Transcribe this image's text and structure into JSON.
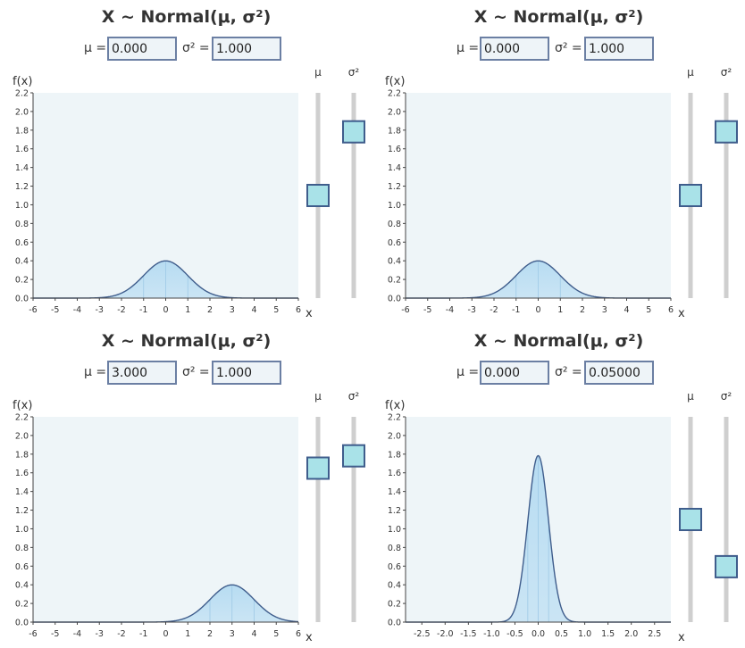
{
  "panels": [
    {
      "title": "X ~ Normal(μ, σ²)",
      "mu_label": "μ =",
      "sigma_label": "σ² =",
      "mu_value": "0.000",
      "sigma_value": "1.000",
      "fx_label": "f(x)",
      "x_label": "x",
      "slider_mu_label": "μ",
      "slider_sigma_label": "σ²",
      "slider_mu_level": 0.5,
      "slider_sigma_level": 0.81
    },
    {
      "title": "X ~ Normal(μ, σ²)",
      "mu_label": "μ =",
      "sigma_label": "σ² =",
      "mu_value": "0.000",
      "sigma_value": "1.000",
      "fx_label": "f(x)",
      "x_label": "x",
      "slider_mu_label": "μ",
      "slider_sigma_label": "σ²",
      "slider_mu_level": 0.5,
      "slider_sigma_level": 0.81
    },
    {
      "title": "X ~ Normal(μ, σ²)",
      "mu_label": "μ =",
      "sigma_label": "σ² =",
      "mu_value": "3.000",
      "sigma_value": "1.000",
      "fx_label": "f(x)",
      "x_label": "x",
      "slider_mu_label": "μ",
      "slider_sigma_label": "σ²",
      "slider_mu_level": 0.75,
      "slider_sigma_level": 0.81
    },
    {
      "title": "X ~ Normal(μ, σ²)",
      "mu_label": "μ =",
      "sigma_label": "σ² =",
      "mu_value": "0.000",
      "sigma_value": "0.05000",
      "fx_label": "f(x)",
      "x_label": "x",
      "slider_mu_label": "μ",
      "slider_sigma_label": "σ²",
      "slider_mu_level": 0.5,
      "slider_sigma_level": 0.27
    }
  ],
  "colors": {
    "plot_bg": "#eef5f8",
    "curve": "#3f5d8c",
    "fill": "#b7dcf2",
    "slider_track": "#cfcfcf",
    "slider_handle": "#a9e2e8",
    "slider_handle_border": "#3f5d8c"
  },
  "chart_data": [
    {
      "type": "area",
      "distribution": "normal",
      "mu": 0.0,
      "sigma2": 1.0,
      "xlim": [
        -6,
        6
      ],
      "ylim": [
        0,
        2.2
      ],
      "x_ticks": [
        "-6",
        "-5",
        "-4",
        "-3",
        "-2",
        "-1",
        "0",
        "1",
        "2",
        "3",
        "4",
        "5",
        "6"
      ],
      "y_ticks": [
        "0.0",
        "0.2",
        "0.4",
        "0.6",
        "0.8",
        "1.0",
        "1.2",
        "1.4",
        "1.6",
        "1.8",
        "2.0",
        "2.2"
      ],
      "xlabel": "x",
      "ylabel": "f(x)"
    },
    {
      "type": "area",
      "distribution": "normal",
      "mu": 0.0,
      "sigma2": 1.0,
      "xlim": [
        -6,
        6
      ],
      "ylim": [
        0,
        2.2
      ],
      "x_ticks": [
        "-6",
        "-5",
        "-4",
        "-3",
        "-2",
        "-1",
        "0",
        "1",
        "2",
        "3",
        "4",
        "5",
        "6"
      ],
      "y_ticks": [
        "0.0",
        "0.2",
        "0.4",
        "0.6",
        "0.8",
        "1.0",
        "1.2",
        "1.4",
        "1.6",
        "1.8",
        "2.0",
        "2.2"
      ],
      "xlabel": "x",
      "ylabel": "f(x)"
    },
    {
      "type": "area",
      "distribution": "normal",
      "mu": 3.0,
      "sigma2": 1.0,
      "xlim": [
        -6,
        6
      ],
      "ylim": [
        0,
        2.2
      ],
      "x_ticks": [
        "-6",
        "-5",
        "-4",
        "-3",
        "-2",
        "-1",
        "0",
        "1",
        "2",
        "3",
        "4",
        "5",
        "6"
      ],
      "y_ticks": [
        "0.0",
        "0.2",
        "0.4",
        "0.6",
        "0.8",
        "1.0",
        "1.2",
        "1.4",
        "1.6",
        "1.8",
        "2.0",
        "2.2"
      ],
      "xlabel": "x",
      "ylabel": "f(x)"
    },
    {
      "type": "area",
      "distribution": "normal",
      "mu": 0.0,
      "sigma2": 0.05,
      "xlim": [
        -2.85,
        2.85
      ],
      "ylim": [
        0,
        2.2
      ],
      "x_ticks": [
        "-2.5",
        "-2.0",
        "-1.5",
        "-1.0",
        "-0.5",
        "0.0",
        "0.5",
        "1.0",
        "1.5",
        "2.0",
        "2.5"
      ],
      "y_ticks": [
        "0.0",
        "0.2",
        "0.4",
        "0.6",
        "0.8",
        "1.0",
        "1.2",
        "1.4",
        "1.6",
        "1.8",
        "2.0",
        "2.2"
      ],
      "xlabel": "x",
      "ylabel": "f(x)"
    }
  ]
}
